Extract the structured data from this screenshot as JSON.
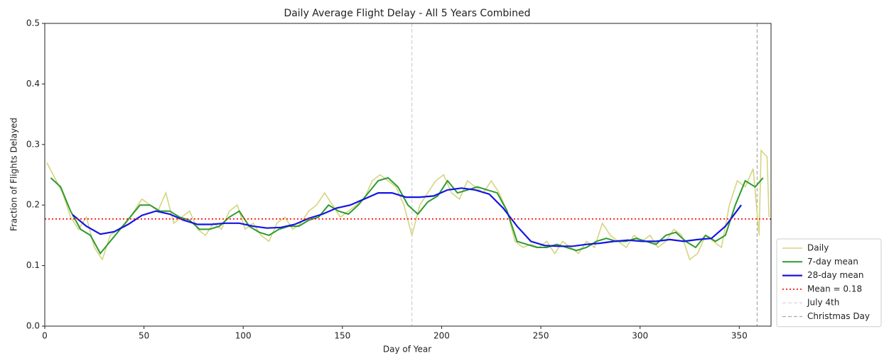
{
  "chart_data": {
    "type": "line",
    "title": "Daily Average Flight Delay - All 5 Years Combined",
    "x_label": "Day of Year",
    "y_label": "Fraction of Flights Delayed",
    "xlim": [
      0,
      366
    ],
    "ylim": [
      0,
      0.5
    ],
    "xticks": [
      0,
      50,
      100,
      150,
      200,
      250,
      300,
      350
    ],
    "yticks": [
      {
        "value": 0,
        "label": "0.0"
      },
      0.1,
      0.2,
      0.3,
      0.4,
      0.5
    ],
    "legend": "outside-lower-right",
    "series": [
      {
        "name": "Daily",
        "color": "#d6d47f",
        "width": 1.6,
        "x": [
          1,
          5,
          9,
          13,
          17,
          21,
          25,
          29,
          33,
          37,
          41,
          45,
          49,
          53,
          57,
          61,
          65,
          69,
          73,
          77,
          81,
          85,
          89,
          93,
          97,
          101,
          105,
          109,
          113,
          117,
          121,
          125,
          129,
          133,
          137,
          141,
          145,
          149,
          153,
          157,
          161,
          165,
          169,
          173,
          177,
          181,
          185,
          189,
          193,
          197,
          201,
          205,
          209,
          213,
          217,
          221,
          225,
          229,
          233,
          237,
          241,
          245,
          249,
          253,
          257,
          261,
          265,
          269,
          273,
          277,
          281,
          285,
          289,
          293,
          297,
          301,
          305,
          309,
          313,
          317,
          321,
          325,
          329,
          333,
          337,
          341,
          345,
          349,
          353,
          357,
          360,
          361,
          364,
          365
        ],
        "values": [
          0.27,
          0.245,
          0.22,
          0.18,
          0.16,
          0.18,
          0.13,
          0.11,
          0.15,
          0.16,
          0.17,
          0.19,
          0.21,
          0.2,
          0.19,
          0.22,
          0.17,
          0.18,
          0.19,
          0.16,
          0.15,
          0.17,
          0.16,
          0.19,
          0.2,
          0.16,
          0.17,
          0.15,
          0.14,
          0.17,
          0.18,
          0.16,
          0.17,
          0.19,
          0.2,
          0.22,
          0.2,
          0.18,
          0.19,
          0.2,
          0.21,
          0.24,
          0.25,
          0.24,
          0.23,
          0.2,
          0.15,
          0.2,
          0.22,
          0.24,
          0.25,
          0.22,
          0.21,
          0.24,
          0.23,
          0.22,
          0.24,
          0.22,
          0.19,
          0.14,
          0.13,
          0.135,
          0.13,
          0.14,
          0.12,
          0.14,
          0.13,
          0.12,
          0.14,
          0.13,
          0.17,
          0.15,
          0.14,
          0.13,
          0.15,
          0.14,
          0.15,
          0.13,
          0.14,
          0.16,
          0.15,
          0.11,
          0.12,
          0.15,
          0.14,
          0.13,
          0.2,
          0.24,
          0.23,
          0.26,
          0.15,
          0.29,
          0.28,
          0.18
        ]
      },
      {
        "name": "7-day mean",
        "color": "#2e9a2e",
        "width": 2,
        "x": [
          3,
          8,
          13,
          18,
          23,
          28,
          33,
          38,
          43,
          48,
          53,
          58,
          63,
          68,
          73,
          78,
          83,
          88,
          93,
          98,
          103,
          108,
          113,
          118,
          123,
          128,
          133,
          138,
          143,
          148,
          153,
          158,
          163,
          168,
          173,
          178,
          183,
          188,
          193,
          198,
          203,
          208,
          213,
          218,
          223,
          228,
          233,
          238,
          243,
          248,
          253,
          258,
          263,
          268,
          273,
          278,
          283,
          288,
          293,
          298,
          303,
          308,
          313,
          318,
          323,
          328,
          333,
          338,
          343,
          348,
          353,
          358,
          362
        ],
        "values": [
          0.245,
          0.23,
          0.19,
          0.16,
          0.15,
          0.12,
          0.14,
          0.16,
          0.18,
          0.2,
          0.2,
          0.19,
          0.19,
          0.18,
          0.175,
          0.16,
          0.16,
          0.165,
          0.18,
          0.19,
          0.165,
          0.155,
          0.15,
          0.16,
          0.165,
          0.165,
          0.175,
          0.18,
          0.2,
          0.19,
          0.185,
          0.2,
          0.22,
          0.24,
          0.245,
          0.23,
          0.2,
          0.185,
          0.205,
          0.215,
          0.24,
          0.22,
          0.225,
          0.23,
          0.225,
          0.22,
          0.19,
          0.14,
          0.135,
          0.13,
          0.13,
          0.135,
          0.13,
          0.125,
          0.13,
          0.14,
          0.145,
          0.14,
          0.14,
          0.145,
          0.14,
          0.135,
          0.15,
          0.155,
          0.14,
          0.13,
          0.15,
          0.14,
          0.15,
          0.2,
          0.24,
          0.23,
          0.245
        ]
      },
      {
        "name": "28-day mean",
        "color": "#1414e6",
        "width": 2.2,
        "x": [
          14,
          21,
          28,
          35,
          42,
          49,
          56,
          63,
          70,
          77,
          84,
          91,
          98,
          105,
          112,
          119,
          126,
          133,
          140,
          147,
          154,
          161,
          168,
          175,
          182,
          189,
          196,
          203,
          210,
          217,
          224,
          231,
          238,
          245,
          252,
          259,
          266,
          273,
          280,
          287,
          294,
          301,
          308,
          315,
          322,
          329,
          336,
          343,
          351
        ],
        "values": [
          0.184,
          0.165,
          0.152,
          0.156,
          0.168,
          0.183,
          0.19,
          0.185,
          0.175,
          0.168,
          0.168,
          0.17,
          0.17,
          0.165,
          0.162,
          0.163,
          0.168,
          0.178,
          0.185,
          0.195,
          0.2,
          0.21,
          0.22,
          0.22,
          0.213,
          0.213,
          0.215,
          0.225,
          0.228,
          0.225,
          0.218,
          0.195,
          0.165,
          0.14,
          0.133,
          0.132,
          0.132,
          0.135,
          0.137,
          0.14,
          0.142,
          0.14,
          0.14,
          0.143,
          0.14,
          0.143,
          0.145,
          0.165,
          0.2
        ]
      }
    ],
    "mean_line": {
      "name": "Mean = 0.18",
      "value": 0.177,
      "color": "#ff0000"
    },
    "vlines": [
      {
        "name": "July 4th",
        "x": 185,
        "color": "#d0d0d0"
      },
      {
        "name": "Christmas Day",
        "x": 359,
        "color": "#a8a8a8"
      }
    ]
  }
}
